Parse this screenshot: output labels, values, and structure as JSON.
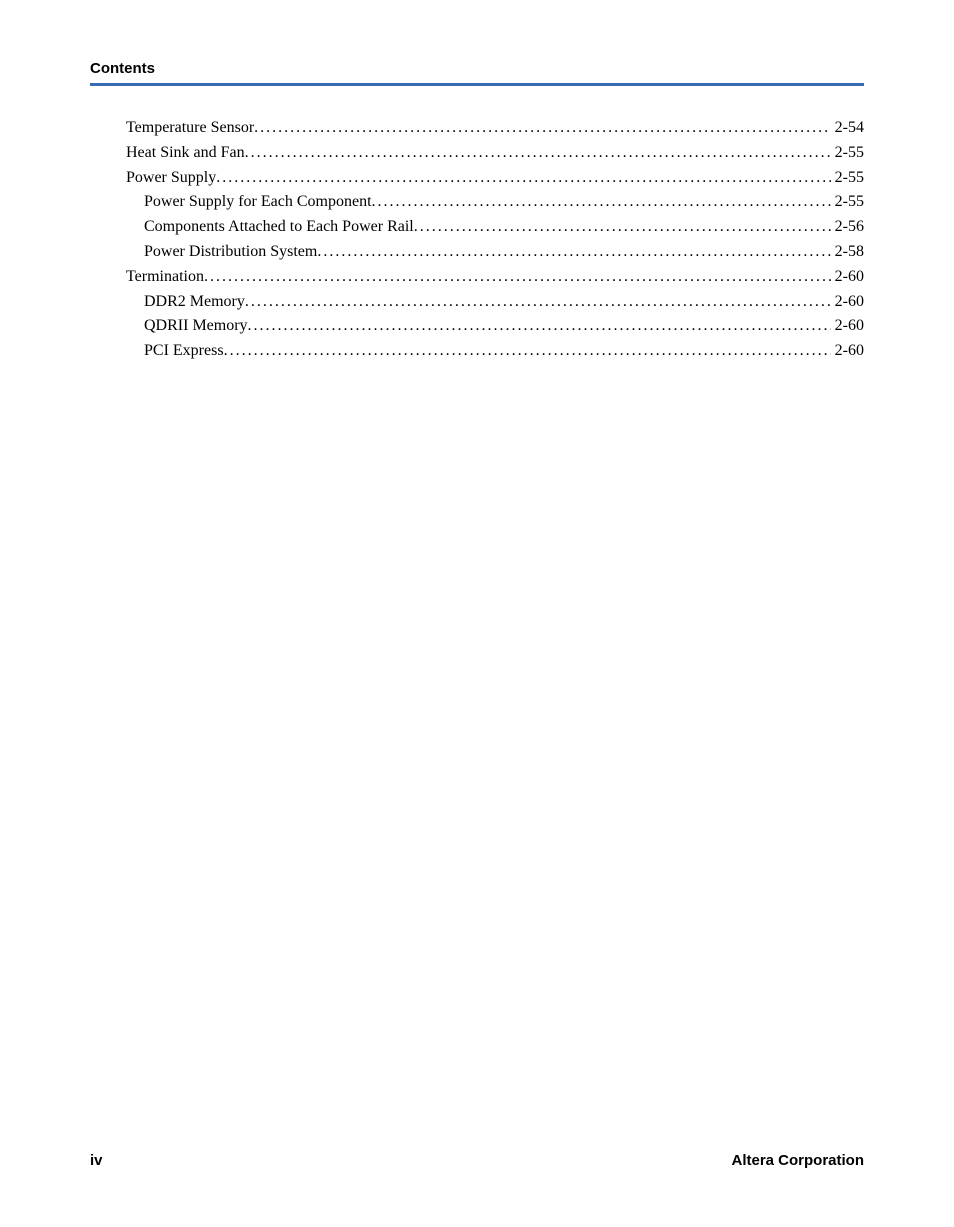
{
  "header": {
    "section_title": "Contents",
    "rule_color": "#3a6cb3"
  },
  "toc": {
    "font_family": "Palatino Linotype",
    "font_size_pt": 12,
    "entries": [
      {
        "label": "Temperature Sensor",
        "page": "2-54",
        "level": 1
      },
      {
        "label": "Heat Sink and Fan",
        "page": "2-55",
        "level": 1
      },
      {
        "label": "Power Supply",
        "page": "2-55",
        "level": 1
      },
      {
        "label": "Power Supply for Each Component",
        "page": "2-55",
        "level": 2
      },
      {
        "label": "Components Attached to Each Power Rail",
        "page": "2-56",
        "level": 2
      },
      {
        "label": "Power Distribution System",
        "page": "2-58",
        "level": 2
      },
      {
        "label": "Termination",
        "page": "2-60",
        "level": 1
      },
      {
        "label": "DDR2 Memory",
        "page": "2-60",
        "level": 2
      },
      {
        "label": "QDRII Memory",
        "page": "2-60",
        "level": 2
      },
      {
        "label": "PCI Express",
        "page": "2-60",
        "level": 2
      }
    ]
  },
  "footer": {
    "left": "iv",
    "right": "Altera Corporation"
  }
}
